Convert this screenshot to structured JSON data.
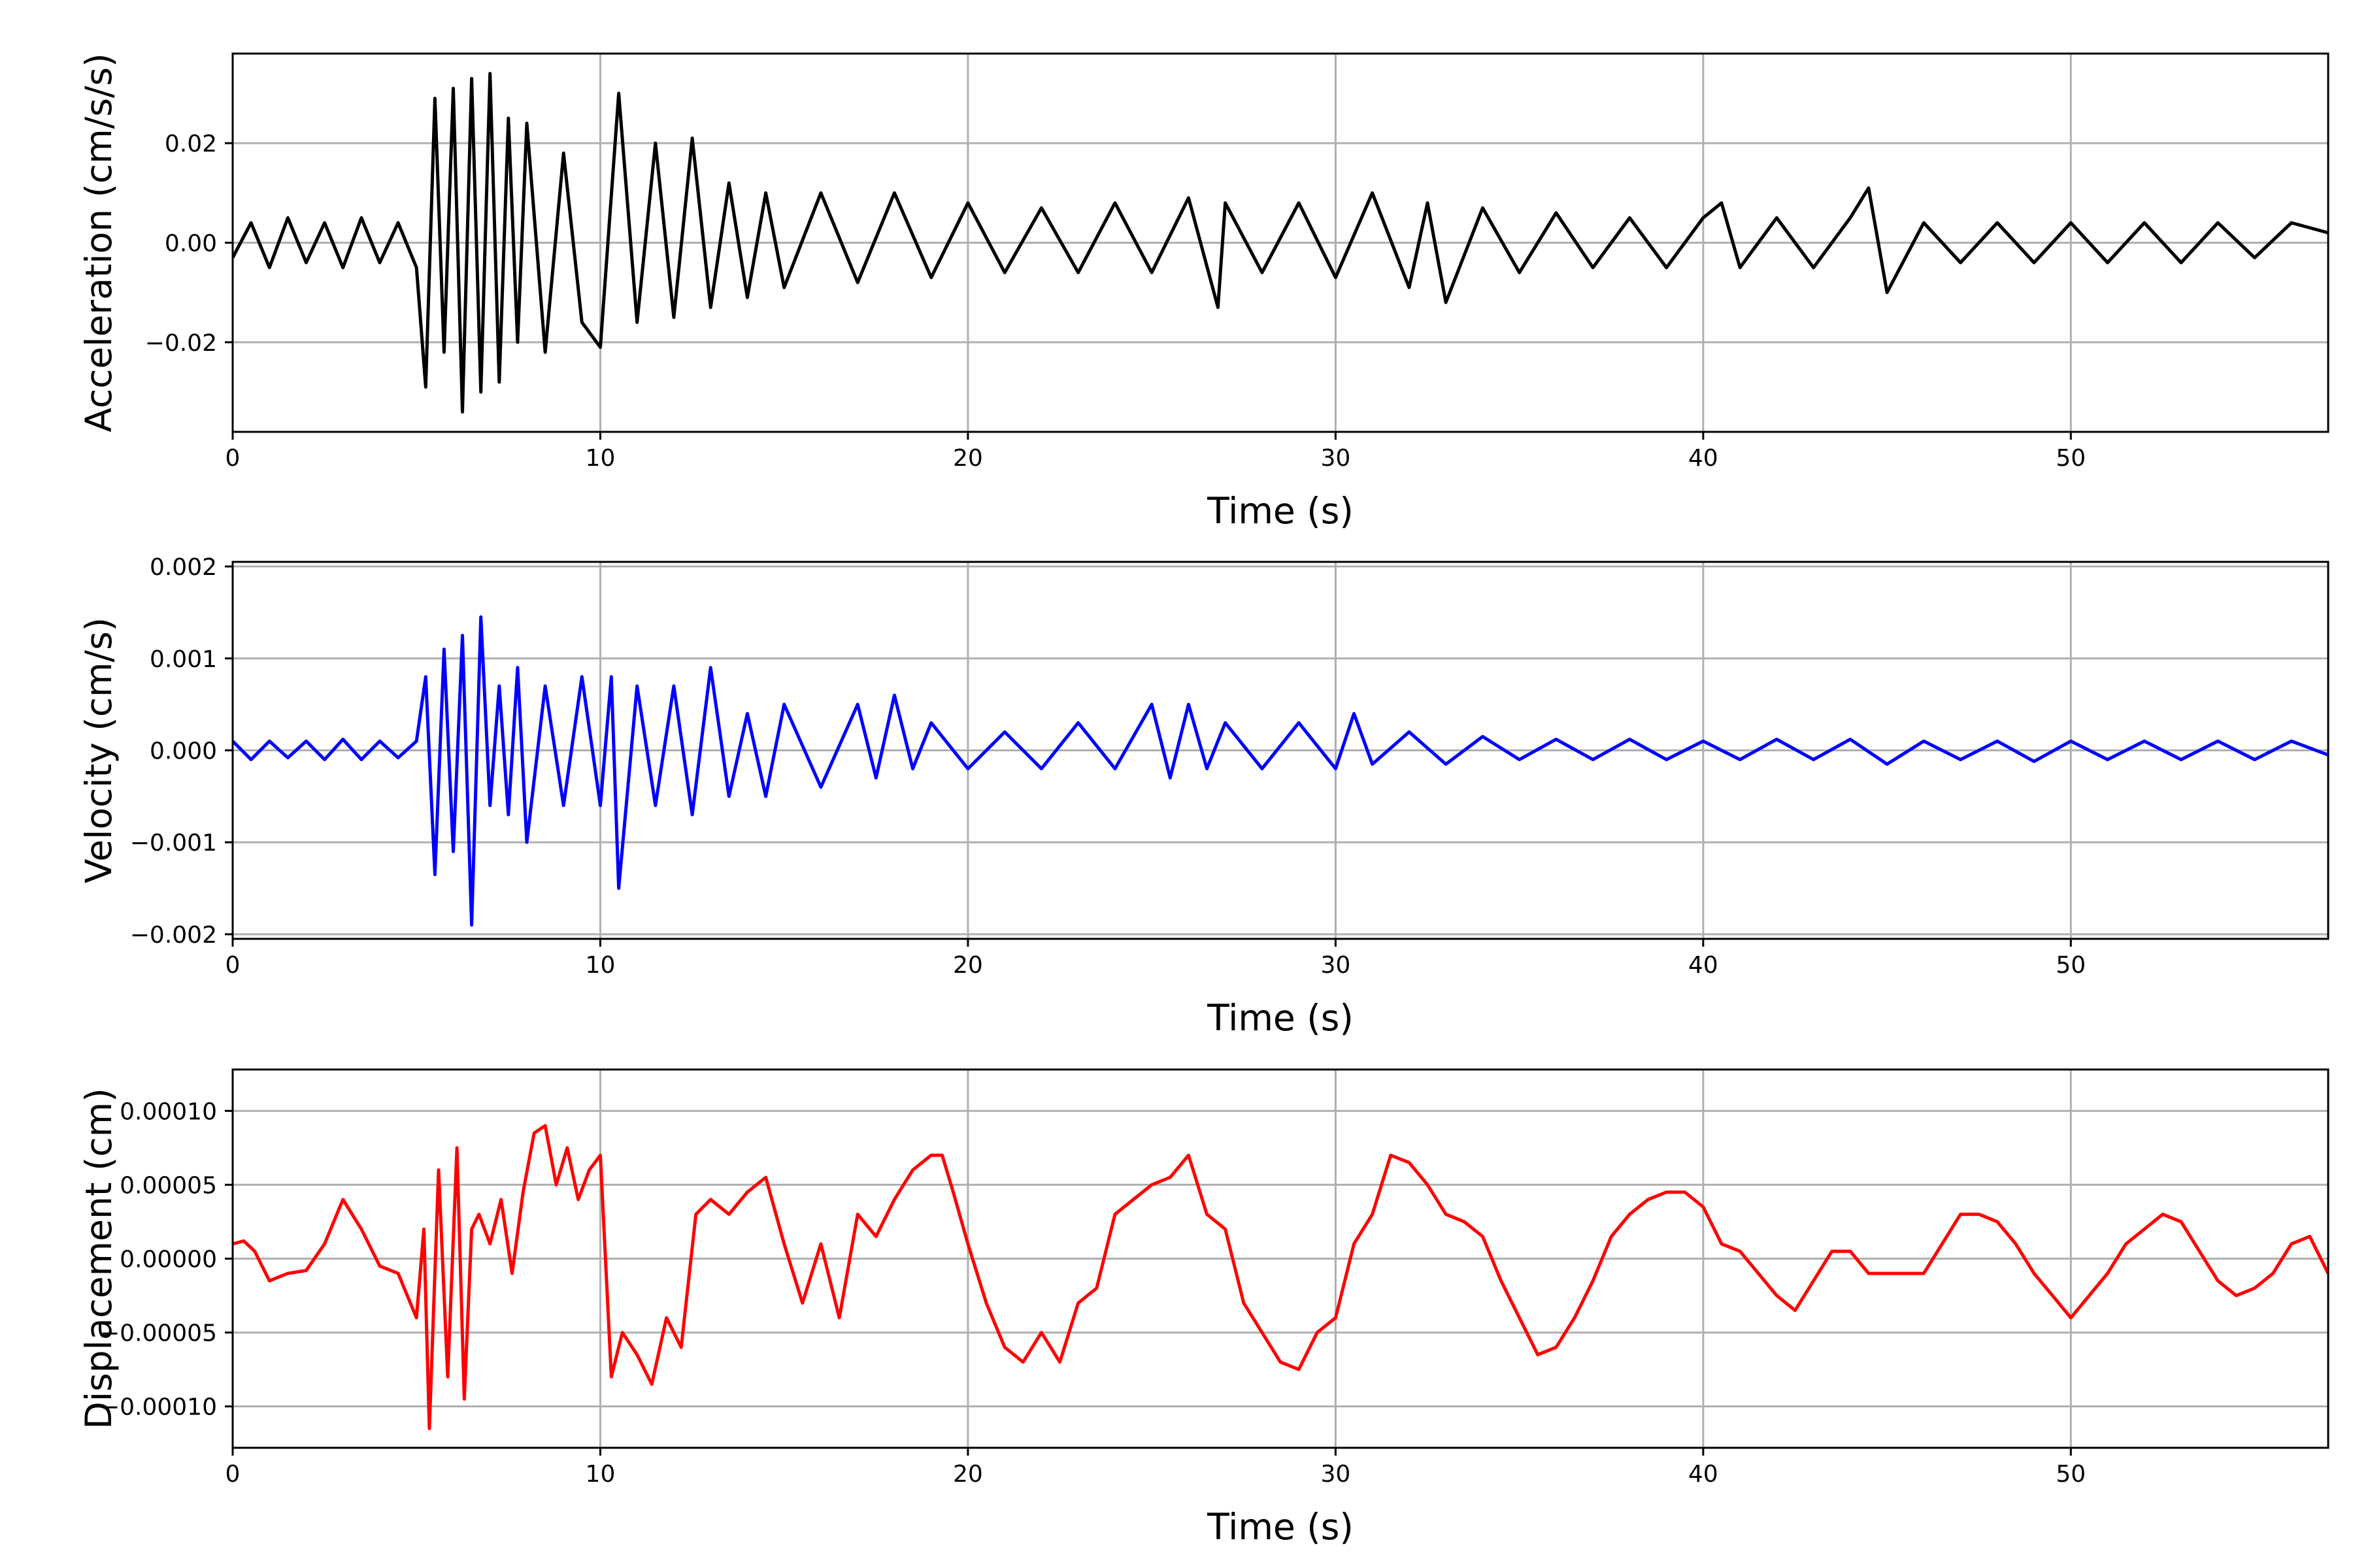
{
  "chart_data": [
    {
      "type": "line",
      "name": "acceleration",
      "xlabel": "Time (s)",
      "ylabel": "Acceleration (cm/s/s)",
      "xlim": [
        0,
        57
      ],
      "ylim": [
        -0.038,
        0.038
      ],
      "xticks": [
        0,
        10,
        20,
        30,
        40,
        50
      ],
      "xtick_labels": [
        "0",
        "10",
        "20",
        "30",
        "40",
        "50"
      ],
      "yticks": [
        -0.02,
        0.0,
        0.02
      ],
      "ytick_labels": [
        "−0.02",
        "0.00",
        "0.02"
      ],
      "grid": true,
      "series": [
        {
          "color": "#000000",
          "x": [
            0,
            0.5,
            1,
            1.5,
            2,
            2.5,
            3,
            3.5,
            4,
            4.5,
            5,
            5.25,
            5.5,
            5.75,
            6,
            6.25,
            6.5,
            6.75,
            7,
            7.25,
            7.5,
            7.75,
            8,
            8.5,
            9,
            9.5,
            10,
            10.5,
            11,
            11.5,
            12,
            12.5,
            13,
            13.5,
            14,
            14.5,
            15,
            16,
            17,
            18,
            19,
            20,
            21,
            22,
            23,
            24,
            25,
            26,
            26.8,
            27,
            28,
            29,
            30,
            31,
            32,
            32.5,
            33,
            34,
            35,
            36,
            37,
            38,
            39,
            40,
            40.5,
            41,
            42,
            43,
            44,
            44.5,
            45,
            46,
            47,
            48,
            49,
            50,
            51,
            52,
            53,
            54,
            55,
            56,
            57
          ],
          "y": [
            -0.003,
            0.004,
            -0.005,
            0.005,
            -0.004,
            0.004,
            -0.005,
            0.005,
            -0.004,
            0.004,
            -0.005,
            -0.029,
            0.029,
            -0.022,
            0.031,
            -0.034,
            0.033,
            -0.03,
            0.034,
            -0.028,
            0.025,
            -0.02,
            0.024,
            -0.022,
            0.018,
            -0.016,
            -0.021,
            0.03,
            -0.016,
            0.02,
            -0.015,
            0.021,
            -0.013,
            0.012,
            -0.011,
            0.01,
            -0.009,
            0.01,
            -0.008,
            0.01,
            -0.007,
            0.008,
            -0.006,
            0.007,
            -0.006,
            0.008,
            -0.006,
            0.009,
            -0.013,
            0.008,
            -0.006,
            0.008,
            -0.007,
            0.01,
            -0.009,
            0.008,
            -0.012,
            0.007,
            -0.006,
            0.006,
            -0.005,
            0.005,
            -0.005,
            0.005,
            0.008,
            -0.005,
            0.005,
            -0.005,
            0.005,
            0.011,
            -0.01,
            0.004,
            -0.004,
            0.004,
            -0.004,
            0.004,
            -0.004,
            0.004,
            -0.004,
            0.004,
            -0.003,
            0.004,
            0.002
          ]
        }
      ]
    },
    {
      "type": "line",
      "name": "velocity",
      "xlabel": "Time (s)",
      "ylabel": "Velocity (cm/s)",
      "xlim": [
        0,
        57
      ],
      "ylim": [
        -0.00205,
        0.00205
      ],
      "xticks": [
        0,
        10,
        20,
        30,
        40,
        50
      ],
      "xtick_labels": [
        "0",
        "10",
        "20",
        "30",
        "40",
        "50"
      ],
      "yticks": [
        -0.002,
        -0.001,
        0.0,
        0.001,
        0.002
      ],
      "ytick_labels": [
        "−0.002",
        "−0.001",
        "0.000",
        "0.001",
        "0.002"
      ],
      "grid": true,
      "series": [
        {
          "color": "#0000ff",
          "x": [
            0,
            0.5,
            1,
            1.5,
            2,
            2.5,
            3,
            3.5,
            4,
            4.5,
            5,
            5.25,
            5.5,
            5.75,
            6,
            6.25,
            6.5,
            6.75,
            7,
            7.25,
            7.5,
            7.75,
            8,
            8.5,
            9,
            9.5,
            10,
            10.3,
            10.5,
            11,
            11.5,
            12,
            12.5,
            13,
            13.5,
            14,
            14.5,
            15,
            16,
            17,
            17.5,
            18,
            18.5,
            19,
            20,
            21,
            22,
            23,
            24,
            25,
            25.5,
            26,
            26.5,
            27,
            28,
            29,
            30,
            30.5,
            31,
            32,
            33,
            34,
            35,
            36,
            37,
            38,
            39,
            40,
            41,
            42,
            43,
            44,
            45,
            46,
            47,
            48,
            49,
            50,
            51,
            52,
            53,
            54,
            55,
            56,
            57
          ],
          "y": [
            0.0001,
            -0.0001,
            0.0001,
            -8e-05,
            0.0001,
            -0.0001,
            0.00012,
            -0.0001,
            0.0001,
            -8e-05,
            0.0001,
            0.0008,
            -0.00135,
            0.0011,
            -0.0011,
            0.00125,
            -0.0019,
            0.00145,
            -0.0006,
            0.0007,
            -0.0007,
            0.0009,
            -0.001,
            0.0007,
            -0.0006,
            0.0008,
            -0.0006,
            0.0008,
            -0.0015,
            0.0007,
            -0.0006,
            0.0007,
            -0.0007,
            0.0009,
            -0.0005,
            0.0004,
            -0.0005,
            0.0005,
            -0.0004,
            0.0005,
            -0.0003,
            0.0006,
            -0.0002,
            0.0003,
            -0.0002,
            0.0002,
            -0.0002,
            0.0003,
            -0.0002,
            0.0005,
            -0.0003,
            0.0005,
            -0.0002,
            0.0003,
            -0.0002,
            0.0003,
            -0.0002,
            0.0004,
            -0.00015,
            0.0002,
            -0.00015,
            0.00015,
            -0.0001,
            0.00012,
            -0.0001,
            0.00012,
            -0.0001,
            0.0001,
            -0.0001,
            0.00012,
            -0.0001,
            0.00012,
            -0.00015,
            0.0001,
            -0.0001,
            0.0001,
            -0.00012,
            0.0001,
            -0.0001,
            0.0001,
            -0.0001,
            0.0001,
            -0.0001,
            0.0001,
            -5e-05
          ]
        }
      ]
    },
    {
      "type": "line",
      "name": "displacement",
      "xlabel": "Time (s)",
      "ylabel": "Displacement (cm)",
      "xlim": [
        0,
        57
      ],
      "ylim": [
        -0.000128,
        0.000128
      ],
      "xticks": [
        0,
        10,
        20,
        30,
        40,
        50
      ],
      "xtick_labels": [
        "0",
        "10",
        "20",
        "30",
        "40",
        "50"
      ],
      "yticks": [
        -0.0001,
        -5e-05,
        0.0,
        5e-05,
        0.0001
      ],
      "ytick_labels": [
        "−0.00010",
        "−0.00005",
        "0.00000",
        "0.00005",
        "0.00010"
      ],
      "grid": true,
      "series": [
        {
          "color": "#ff0000",
          "x": [
            0,
            0.3,
            0.6,
            1,
            1.5,
            2,
            2.5,
            3,
            3.5,
            4,
            4.5,
            5,
            5.2,
            5.35,
            5.6,
            5.85,
            6.1,
            6.3,
            6.5,
            6.7,
            7,
            7.3,
            7.6,
            7.9,
            8.2,
            8.5,
            8.8,
            9.1,
            9.4,
            9.7,
            10,
            10.3,
            10.6,
            11,
            11.4,
            11.8,
            12.2,
            12.6,
            13,
            13.5,
            14,
            14.5,
            15,
            15.5,
            16,
            16.5,
            17,
            17.5,
            18,
            18.5,
            19,
            19.3,
            19.6,
            20,
            20.5,
            21,
            21.5,
            22,
            22.5,
            23,
            23.5,
            24,
            24.5,
            25,
            25.5,
            26,
            26.5,
            27,
            27.5,
            28,
            28.5,
            29,
            29.5,
            30,
            30.5,
            31,
            31.5,
            32,
            32.5,
            33,
            33.5,
            34,
            34.5,
            35,
            35.5,
            36,
            36.5,
            37,
            37.5,
            38,
            38.5,
            39,
            39.5,
            40,
            40.5,
            41,
            41.5,
            42,
            42.5,
            43,
            43.5,
            44,
            44.5,
            45,
            45.5,
            46,
            46.5,
            47,
            47.5,
            48,
            48.5,
            49,
            49.5,
            50,
            50.5,
            51,
            51.5,
            52,
            52.5,
            53,
            53.5,
            54,
            54.5,
            55,
            55.5,
            56,
            56.5,
            57
          ],
          "y": [
            1e-05,
            1.2e-05,
            5e-06,
            -1.5e-05,
            -1e-05,
            -8e-06,
            1e-05,
            4e-05,
            2e-05,
            -5e-06,
            -1e-05,
            -4e-05,
            2e-05,
            -0.000115,
            6e-05,
            -8e-05,
            7.5e-05,
            -9.5e-05,
            2e-05,
            3e-05,
            1e-05,
            4e-05,
            -1e-05,
            4.5e-05,
            8.5e-05,
            9e-05,
            5e-05,
            7.5e-05,
            4e-05,
            6e-05,
            7e-05,
            -8e-05,
            -5e-05,
            -6.5e-05,
            -8.5e-05,
            -4e-05,
            -6e-05,
            3e-05,
            4e-05,
            3e-05,
            4.5e-05,
            5.5e-05,
            1e-05,
            -3e-05,
            1e-05,
            -4e-05,
            3e-05,
            1.5e-05,
            4e-05,
            6e-05,
            7e-05,
            7e-05,
            4.5e-05,
            1e-05,
            -3e-05,
            -6e-05,
            -7e-05,
            -5e-05,
            -7e-05,
            -3e-05,
            -2e-05,
            3e-05,
            4e-05,
            5e-05,
            5.5e-05,
            7e-05,
            3e-05,
            2e-05,
            -3e-05,
            -5e-05,
            -7e-05,
            -7.5e-05,
            -5e-05,
            -4e-05,
            1e-05,
            3e-05,
            7e-05,
            6.5e-05,
            5e-05,
            3e-05,
            2.5e-05,
            1.5e-05,
            -1.5e-05,
            -4e-05,
            -6.5e-05,
            -6e-05,
            -4e-05,
            -1.5e-05,
            1.5e-05,
            3e-05,
            4e-05,
            4.5e-05,
            4.5e-05,
            3.5e-05,
            1e-05,
            5e-06,
            -1e-05,
            -2.5e-05,
            -3.5e-05,
            -1.5e-05,
            5e-06,
            5e-06,
            -1e-05,
            -1e-05,
            -1e-05,
            -1e-05,
            1e-05,
            3e-05,
            3e-05,
            2.5e-05,
            1e-05,
            -1e-05,
            -2.5e-05,
            -4e-05,
            -2.5e-05,
            -1e-05,
            1e-05,
            2e-05,
            3e-05,
            2.5e-05,
            5e-06,
            -1.5e-05,
            -2.5e-05,
            -2e-05,
            -1e-05,
            1e-05,
            1.5e-05,
            -1e-05
          ]
        }
      ]
    }
  ]
}
